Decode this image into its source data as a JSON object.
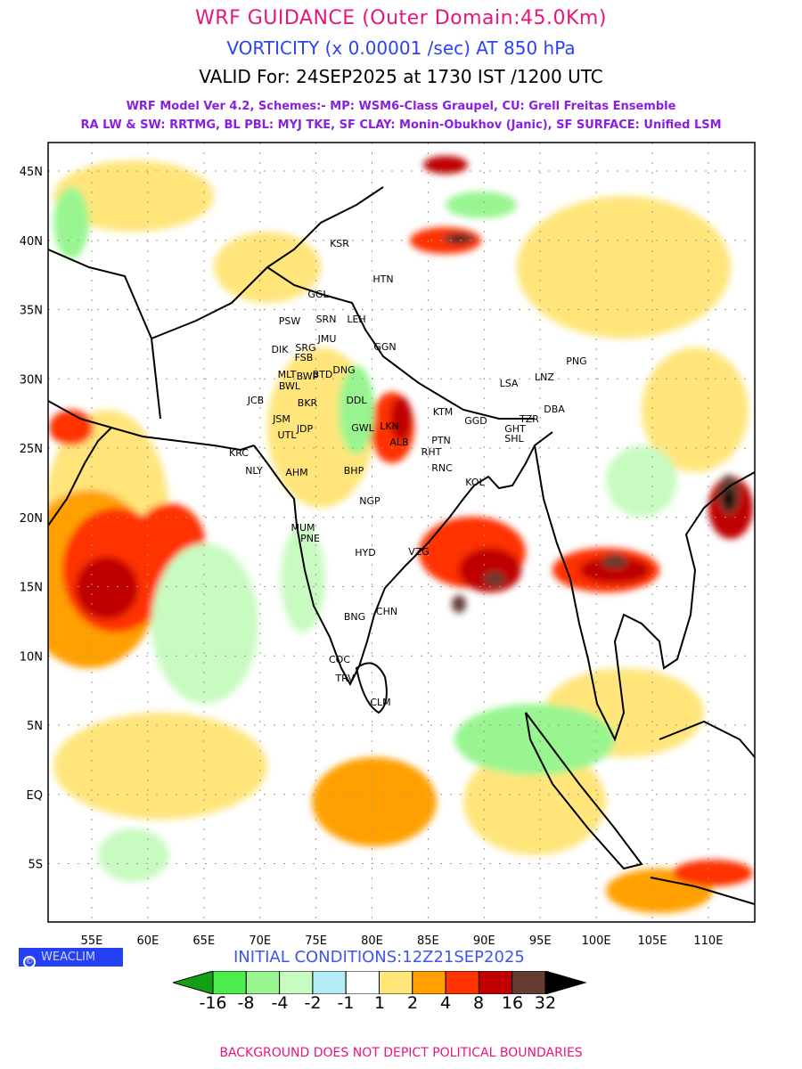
{
  "header": {
    "title": "WRF GUIDANCE (Outer Domain:45.0Km)",
    "subtitle": "VORTICITY (x 0.00001 /sec) AT 850 hPa",
    "valid": "VALID For: 24SEP2025 at 1730 IST /1200 UTC",
    "model_line1": "WRF Model Ver 4.2, Schemes:- MP: WSM6-Class Graupel, CU: Grell Freitas Ensemble",
    "model_line2": "RA LW & SW: RRTMG, BL PBL: MYJ TKE, SF CLAY: Monin-Obukhov (Janic), SF SURFACE: Unified LSM"
  },
  "map": {
    "lat_labels": [
      "45N",
      "40N",
      "35N",
      "30N",
      "25N",
      "20N",
      "15N",
      "10N",
      "5N",
      "EQ",
      "5S"
    ],
    "lon_labels": [
      "55E",
      "60E",
      "65E",
      "70E",
      "75E",
      "80E",
      "85E",
      "90E",
      "95E",
      "100E",
      "105E",
      "110E"
    ],
    "cities": [
      "KSR",
      "HTN",
      "GGL",
      "PSW",
      "SRN",
      "LEH",
      "JMU",
      "GGN",
      "DIK",
      "SRG",
      "FSB",
      "MLT",
      "BWP",
      "BTD",
      "DNG",
      "BWL",
      "LSA",
      "LNZ",
      "PNG",
      "JCB",
      "BKR",
      "DDL",
      "KTM",
      "GGD",
      "TZR",
      "DBA",
      "JSM",
      "LKN",
      "GWL",
      "JDP",
      "UTL",
      "ALB",
      "PTN",
      "RHT",
      "GHT",
      "SHL",
      "KRC",
      "NLY",
      "AHM",
      "BHP",
      "RNC",
      "KOL",
      "NGP",
      "MUM",
      "PNE",
      "HYD",
      "VZG",
      "BNG",
      "CHN",
      "COC",
      "TRV",
      "CLM"
    ]
  },
  "footer": {
    "brand": "WEACLIM",
    "brand_symbol": "©",
    "initial_conditions": "INITIAL CONDITIONS:12Z21SEP2025",
    "disclaimer": "BACKGROUND DOES NOT DEPICT POLITICAL BOUNDARIES"
  },
  "colorbar": {
    "labels": [
      "-16",
      "-8",
      "-4",
      "-2",
      "-1",
      "1",
      "2",
      "4",
      "8",
      "16",
      "32"
    ],
    "colors": [
      "#14a014",
      "#4ced4c",
      "#98f590",
      "#c8fbc0",
      "#b4ecf6",
      "#ffffff",
      "#ffe57a",
      "#ffa000",
      "#ff3200",
      "#c00000",
      "#643c32",
      "#000000"
    ]
  }
}
